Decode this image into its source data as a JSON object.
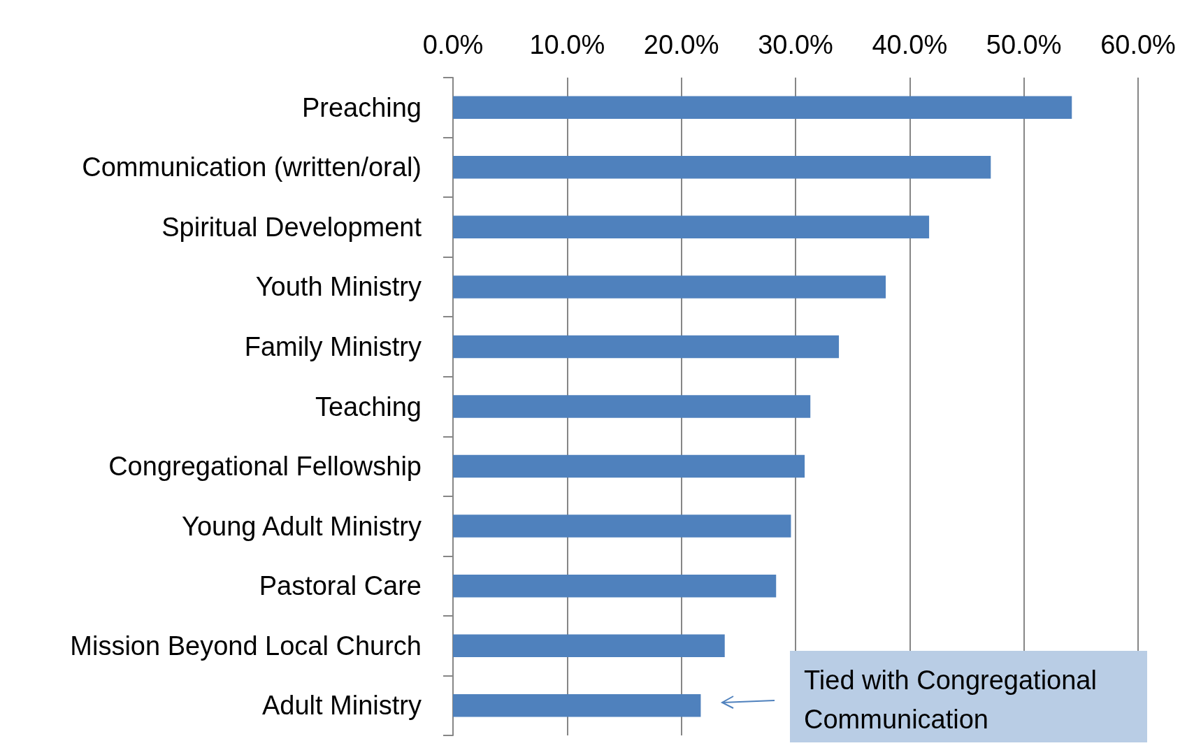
{
  "chart_data": {
    "type": "bar",
    "orientation": "horizontal",
    "categories": [
      "Preaching",
      "Communication (written/oral)",
      "Spiritual Development",
      "Youth Ministry",
      "Family Ministry",
      "Teaching",
      "Congregational Fellowship",
      "Young Adult Ministry",
      "Pastoral Care",
      "Mission Beyond Local Church",
      "Adult Ministry"
    ],
    "values": [
      54.2,
      47.1,
      41.7,
      37.9,
      33.8,
      31.3,
      30.8,
      29.6,
      28.3,
      23.8,
      21.7
    ],
    "color": "#4f81bd",
    "xlim": [
      0,
      60
    ],
    "xticks": [
      {
        "value": 0,
        "label": "0.0%"
      },
      {
        "value": 10,
        "label": "10.0%"
      },
      {
        "value": 20,
        "label": "20.0%"
      },
      {
        "value": 30,
        "label": "30.0%"
      },
      {
        "value": 40,
        "label": "40.0%"
      },
      {
        "value": 50,
        "label": "50.0%"
      },
      {
        "value": 60,
        "label": "60.0%"
      }
    ],
    "grid": "x",
    "annotations": [
      "Tied with Congregational Communication"
    ]
  }
}
